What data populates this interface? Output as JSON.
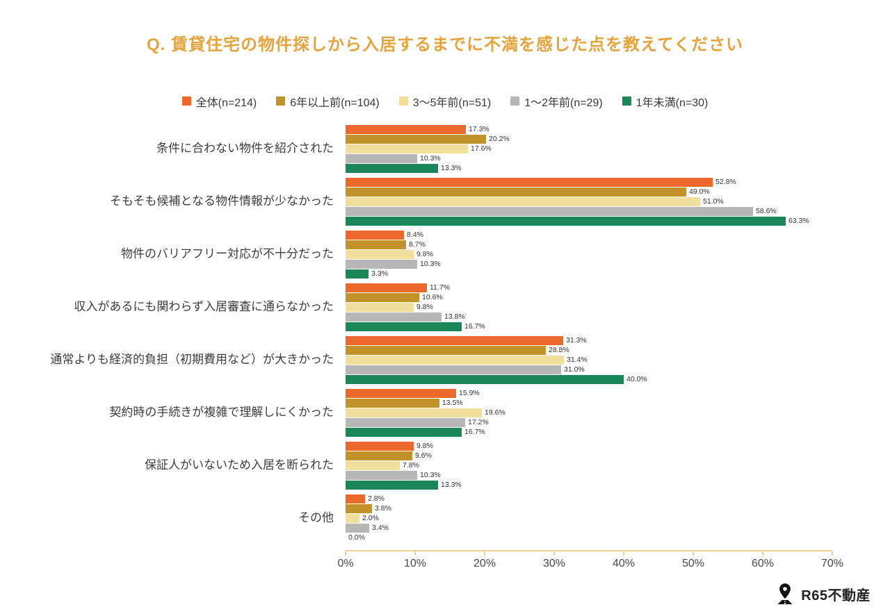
{
  "page": {
    "title": "Q. 賃貸住宅の物件探しから入居するまでに不満を感じた点を教えてください"
  },
  "colors": {
    "title": "#E6A23C",
    "axis": "#ECD193",
    "value_label": "#333333",
    "category_label": "#3D3D3D"
  },
  "chart_data": {
    "type": "bar",
    "orientation": "horizontal",
    "title": "Q. 賃貸住宅の物件探しから入居するまでに不満を感じた点を教えてください",
    "categories": [
      "条件に合わない物件を紹介された",
      "そもそも候補となる物件情報が少なかった",
      "物件のバリアフリー対応が不十分だった",
      "収入があるにも関わらず入居審査に通らなかった",
      "通常よりも経済的負担（初期費用など）が大きかった",
      "契約時の手続きが複雑で理解しにくかった",
      "保証人がいないため入居を断られた",
      "その他"
    ],
    "series": [
      {
        "name": "全体(n=214)",
        "color": "#EB6A2B",
        "values": [
          17.3,
          52.8,
          8.4,
          11.7,
          31.3,
          15.9,
          9.8,
          2.8
        ]
      },
      {
        "name": "6年以上前(n=104)",
        "color": "#C3932B",
        "values": [
          20.2,
          49.0,
          8.7,
          10.6,
          28.8,
          13.5,
          9.6,
          3.8
        ]
      },
      {
        "name": "3〜5年前(n=51)",
        "color": "#F2DF9E",
        "values": [
          17.6,
          51.0,
          9.8,
          9.8,
          31.4,
          19.6,
          7.8,
          2.0
        ]
      },
      {
        "name": "1〜2年前(n=29)",
        "color": "#B7B7B7",
        "values": [
          10.3,
          58.6,
          10.3,
          13.8,
          31.0,
          17.2,
          10.3,
          3.4
        ]
      },
      {
        "name": "1年未満(n=30)",
        "color": "#1B8659",
        "values": [
          13.3,
          63.3,
          3.3,
          16.7,
          40.0,
          16.7,
          13.3,
          0.0
        ]
      }
    ],
    "xlim": [
      0,
      70
    ],
    "x_tick_labels": [
      "0%",
      "10%",
      "20%",
      "30%",
      "40%",
      "50%",
      "60%",
      "70%"
    ],
    "value_format": "one_decimal_percent",
    "legend_position": "top",
    "grid": false
  },
  "footer": {
    "brand": "R65不動産"
  }
}
